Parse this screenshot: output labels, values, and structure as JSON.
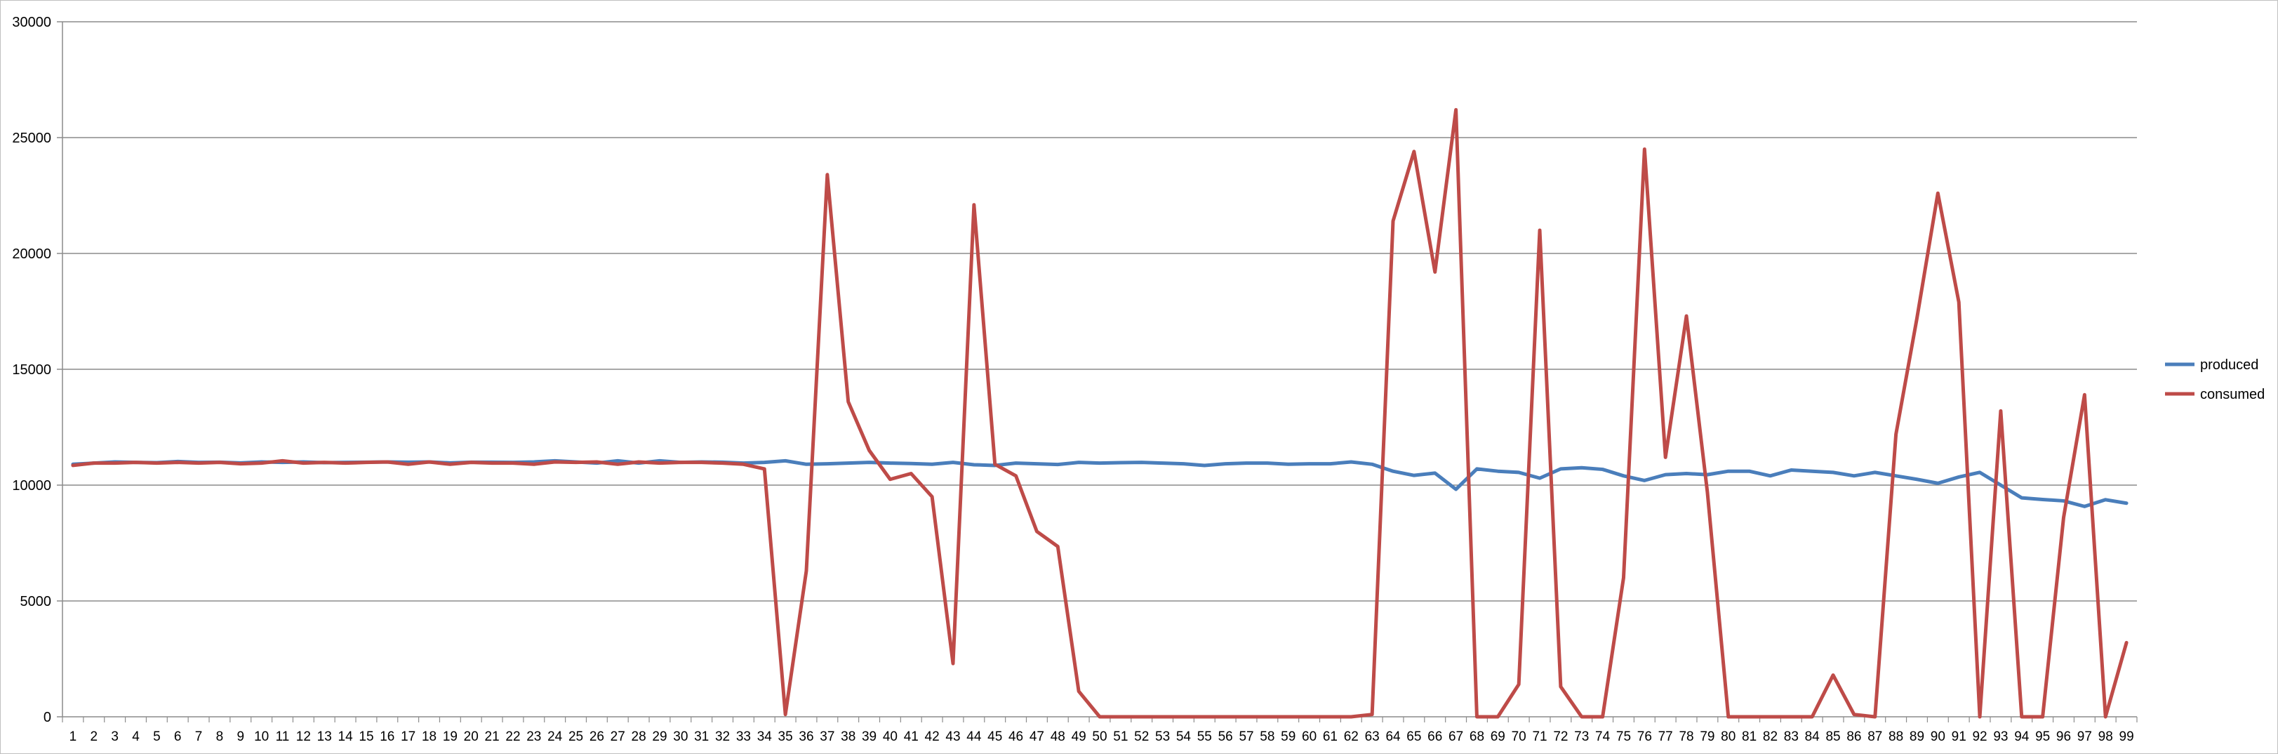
{
  "chart_data": {
    "type": "line",
    "title": "",
    "xlabel": "",
    "ylabel": "",
    "ylim": [
      0,
      30000
    ],
    "yticks": [
      0,
      5000,
      10000,
      15000,
      20000,
      25000,
      30000
    ],
    "grid": "horizontal",
    "legend_position": "right",
    "x": [
      1,
      2,
      3,
      4,
      5,
      6,
      7,
      8,
      9,
      10,
      11,
      12,
      13,
      14,
      15,
      16,
      17,
      18,
      19,
      20,
      21,
      22,
      23,
      24,
      25,
      26,
      27,
      28,
      29,
      30,
      31,
      32,
      33,
      34,
      35,
      36,
      37,
      38,
      39,
      40,
      41,
      42,
      43,
      44,
      45,
      46,
      47,
      48,
      49,
      50,
      51,
      52,
      53,
      54,
      55,
      56,
      57,
      58,
      59,
      60,
      61,
      62,
      63,
      64,
      65,
      66,
      67,
      68,
      69,
      70,
      71,
      72,
      73,
      74,
      75,
      76,
      77,
      78,
      79,
      80,
      81,
      82,
      83,
      84,
      85,
      86,
      87,
      88,
      89,
      90,
      91,
      92,
      93,
      94,
      95,
      96,
      97,
      98,
      99
    ],
    "series": [
      {
        "name": "produced",
        "color": "#4a7ebb",
        "values": [
          10900,
          10950,
          11000,
          10980,
          10970,
          11020,
          10980,
          10990,
          10960,
          11000,
          10980,
          11000,
          10970,
          10980,
          10990,
          11000,
          10990,
          11000,
          10960,
          10990,
          10990,
          10980,
          11000,
          11050,
          11000,
          10950,
          11050,
          10950,
          11050,
          10980,
          11000,
          10990,
          10950,
          10980,
          11050,
          10900,
          10920,
          10950,
          10980,
          10950,
          10930,
          10900,
          10980,
          10880,
          10850,
          10950,
          10920,
          10890,
          10980,
          10950,
          10970,
          10980,
          10950,
          10920,
          10850,
          10920,
          10950,
          10950,
          10900,
          10920,
          10920,
          11000,
          10900,
          10600,
          10420,
          10520,
          9820,
          10700,
          10600,
          10550,
          10300,
          10700,
          10750,
          10680,
          10400,
          10200,
          10450,
          10500,
          10450,
          10600,
          10600,
          10400,
          10650,
          10600,
          10550,
          10400,
          10550,
          10400,
          10250,
          10080,
          10350,
          10550,
          10000,
          9450,
          9380,
          9320,
          9080,
          9370,
          9220
        ]
      },
      {
        "name": "consumed",
        "color": "#be4b48",
        "values": [
          10850,
          10950,
          10950,
          10980,
          10950,
          10980,
          10950,
          10980,
          10920,
          10950,
          11050,
          10950,
          10980,
          10950,
          10980,
          11000,
          10900,
          11000,
          10900,
          10980,
          10950,
          10950,
          10900,
          11000,
          10980,
          11000,
          10900,
          11000,
          10950,
          10980,
          10980,
          10950,
          10900,
          10700,
          100,
          6300,
          23400,
          13600,
          11500,
          10250,
          10500,
          9500,
          2300,
          22100,
          10900,
          10400,
          8000,
          7350,
          1100,
          0,
          0,
          0,
          0,
          0,
          0,
          0,
          0,
          0,
          0,
          0,
          0,
          0,
          100,
          21400,
          24400,
          19200,
          26200,
          0,
          0,
          1400,
          21000,
          1300,
          0,
          0,
          6000,
          24500,
          11200,
          17300,
          9700,
          0,
          0,
          0,
          0,
          0,
          1800,
          100,
          0,
          12200,
          17200,
          22600,
          17900,
          0,
          13200,
          0,
          0,
          8600,
          13900,
          0,
          3200
        ]
      }
    ]
  }
}
